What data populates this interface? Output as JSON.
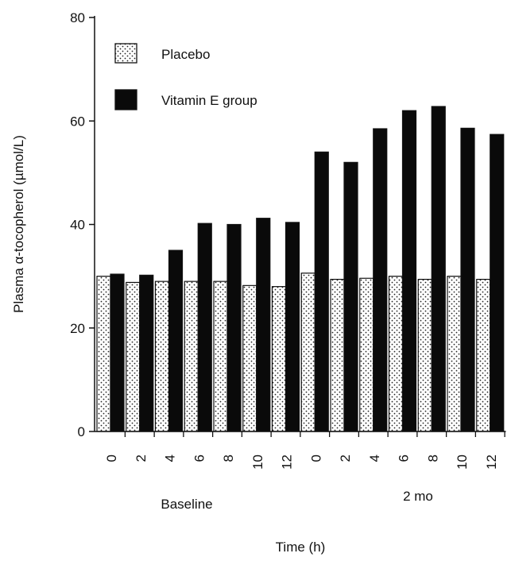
{
  "chart_data": {
    "type": "bar",
    "title": "",
    "xlabel": "Time (h)",
    "ylabel": "Plasma α-tocopherol (µmol/L)",
    "ylim": [
      0,
      80
    ],
    "yticks": [
      0,
      20,
      40,
      60,
      80
    ],
    "grid": false,
    "legend_position": "top-left",
    "categories": [
      "0",
      "2",
      "4",
      "6",
      "8",
      "10",
      "12",
      "0",
      "2",
      "4",
      "6",
      "8",
      "10",
      "12"
    ],
    "groups": [
      {
        "label": "Baseline",
        "categories": [
          "0",
          "2",
          "4",
          "6",
          "8",
          "10",
          "12"
        ]
      },
      {
        "label": "2 mo",
        "categories": [
          "0",
          "2",
          "4",
          "6",
          "8",
          "10",
          "12"
        ]
      }
    ],
    "series": [
      {
        "name": "Placebo",
        "pattern": "dotted",
        "color": "#ffffff",
        "values": [
          30,
          28.8,
          29,
          29,
          29,
          28.2,
          28,
          30.6,
          29.4,
          29.6,
          30,
          29.4,
          30,
          29.4
        ]
      },
      {
        "name": "Vitamin E group",
        "pattern": "solid",
        "color": "#0a0a0a",
        "values": [
          30.4,
          30.2,
          35,
          40.2,
          40,
          41.2,
          40.4,
          54,
          52,
          58.5,
          62,
          62.8,
          58.6,
          57.4
        ]
      }
    ]
  }
}
